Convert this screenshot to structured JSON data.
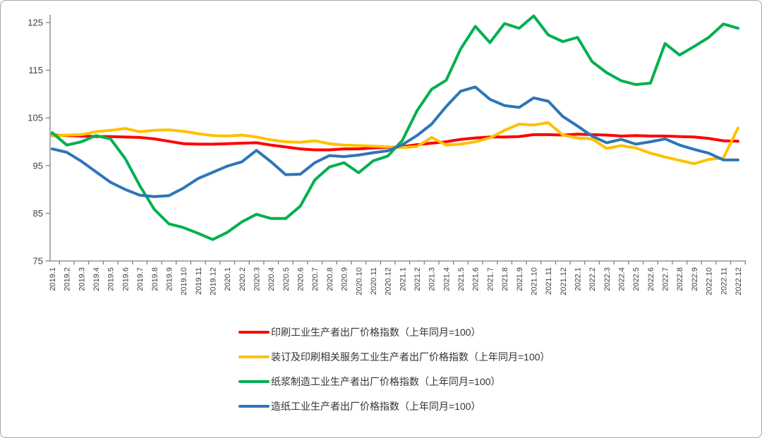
{
  "chart_data": {
    "type": "line",
    "title": "",
    "xlabel": "",
    "ylabel": "",
    "grid": false,
    "legend_position": "bottom-center-left",
    "ylim": [
      75,
      125
    ],
    "y_ticks": [
      75,
      85,
      95,
      105,
      115,
      125
    ],
    "categories": [
      "2019.1",
      "2019.2",
      "2019.3",
      "2019.4",
      "2019.5",
      "2019.6",
      "2019.7",
      "2019.8",
      "2019.9",
      "2019.10",
      "2019.11",
      "2019.12",
      "2020.1",
      "2020.2",
      "2020.3",
      "2020.4",
      "2020.5",
      "2020.6",
      "2020.7",
      "2020.8",
      "2020.9",
      "2020.10",
      "2020.11",
      "2020.12",
      "2021.1",
      "2021.2",
      "2021.3",
      "2021.4",
      "2021.5",
      "2021.6",
      "2021.7",
      "2021.8",
      "2021.9",
      "2021.10",
      "2021.11",
      "2021.12",
      "2022.1",
      "2022.2",
      "2022.3",
      "2022.4",
      "2022.5",
      "2022.6",
      "2022.7",
      "2022.8",
      "2022.9",
      "2022.10",
      "2022.11",
      "2022.12"
    ],
    "series": [
      {
        "key": "printing",
        "name": "印刷工业生产者出厂价格指数（上年同月=100）",
        "color": "#FF0000",
        "values": [
          101.4,
          101.3,
          101.2,
          101.1,
          101.1,
          101.0,
          100.9,
          100.6,
          100.1,
          99.6,
          99.5,
          99.5,
          99.6,
          99.7,
          99.8,
          99.3,
          98.9,
          98.5,
          98.3,
          98.3,
          98.5,
          98.5,
          98.7,
          98.8,
          99.0,
          99.4,
          99.7,
          100.0,
          100.5,
          100.8,
          101.0,
          101.0,
          101.1,
          101.5,
          101.5,
          101.4,
          101.6,
          101.5,
          101.4,
          101.2,
          101.3,
          101.2,
          101.2,
          101.1,
          101.0,
          100.7,
          100.2,
          100.1
        ]
      },
      {
        "key": "binding-services",
        "name": "装订及印刷相关服务工业生产者出厂价格指数（上年同月=100）",
        "color": "#FFC000",
        "values": [
          101.2,
          101.4,
          101.5,
          102.1,
          102.4,
          102.8,
          102.1,
          102.4,
          102.5,
          102.2,
          101.7,
          101.3,
          101.2,
          101.4,
          101.0,
          100.4,
          100.0,
          99.9,
          100.2,
          99.6,
          99.3,
          99.2,
          99.1,
          98.9,
          98.8,
          99.0,
          100.9,
          99.3,
          99.5,
          100.0,
          100.8,
          102.4,
          103.7,
          103.5,
          104.0,
          101.4,
          100.8,
          100.6,
          98.6,
          99.2,
          98.7,
          97.6,
          96.8,
          96.1,
          95.4,
          96.3,
          96.6,
          102.9
        ]
      },
      {
        "key": "pulp-manufacturing",
        "name": "纸浆制造工业生产者出厂价格指数（上年同月=100）",
        "color": "#00B050",
        "values": [
          101.9,
          99.3,
          100.0,
          101.3,
          100.6,
          96.5,
          90.8,
          85.8,
          82.8,
          82.0,
          80.8,
          79.5,
          81.0,
          83.2,
          84.8,
          83.9,
          83.9,
          86.5,
          92.0,
          94.7,
          95.6,
          93.5,
          96.0,
          97.0,
          100.3,
          106.5,
          111.0,
          112.9,
          119.5,
          124.2,
          120.8,
          124.8,
          123.8,
          126.4,
          122.4,
          121.0,
          121.9,
          116.8,
          114.5,
          112.8,
          112.0,
          112.3,
          120.6,
          118.2,
          120.0,
          121.9,
          124.7,
          123.8
        ]
      },
      {
        "key": "papermaking",
        "name": "造纸工业生产者出厂价格指数（上年同月=100）",
        "color": "#2E75B6",
        "values": [
          98.5,
          97.8,
          95.9,
          93.7,
          91.5,
          90.0,
          88.8,
          88.5,
          88.7,
          90.3,
          92.3,
          93.6,
          94.9,
          95.8,
          98.2,
          95.8,
          93.1,
          93.2,
          95.6,
          97.1,
          96.9,
          97.2,
          97.7,
          98.1,
          99.4,
          101.3,
          103.7,
          107.4,
          110.6,
          111.5,
          108.9,
          107.6,
          107.2,
          109.2,
          108.5,
          105.3,
          103.3,
          101.2,
          99.8,
          100.5,
          99.5,
          100.0,
          100.6,
          99.3,
          98.4,
          97.6,
          96.2,
          96.2
        ]
      }
    ]
  },
  "style": {
    "axis_color": "#808080",
    "tick_text_color": "#404040",
    "background": "#FFFFFF",
    "border_color": "#A6A6A6",
    "line_width": 4
  }
}
